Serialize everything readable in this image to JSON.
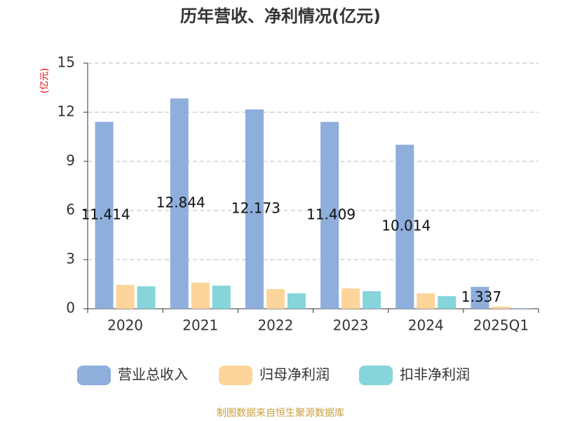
{
  "chart_data": {
    "type": "bar",
    "title": "历年营收、净利情况(亿元)",
    "y_label": "(亿元)",
    "categories": [
      "2020",
      "2021",
      "2022",
      "2023",
      "2024",
      "2025Q1"
    ],
    "series": [
      {
        "name": "营业总收入",
        "color": "#8eaedb",
        "values": [
          11.414,
          12.844,
          12.173,
          11.409,
          10.014,
          1.337
        ]
      },
      {
        "name": "归母净利润",
        "color": "#fdd59b",
        "values": [
          1.46,
          1.59,
          1.2,
          1.24,
          0.94,
          0.13
        ]
      },
      {
        "name": "扣非净利润",
        "color": "#85d5da",
        "values": [
          1.37,
          1.41,
          0.94,
          1.07,
          0.77,
          0.04
        ]
      }
    ],
    "ylim": [
      0,
      15
    ],
    "yticks": [
      0,
      3,
      6,
      9,
      12,
      15
    ],
    "grid": true,
    "source": "制图数据来自恒生聚源数据库"
  }
}
